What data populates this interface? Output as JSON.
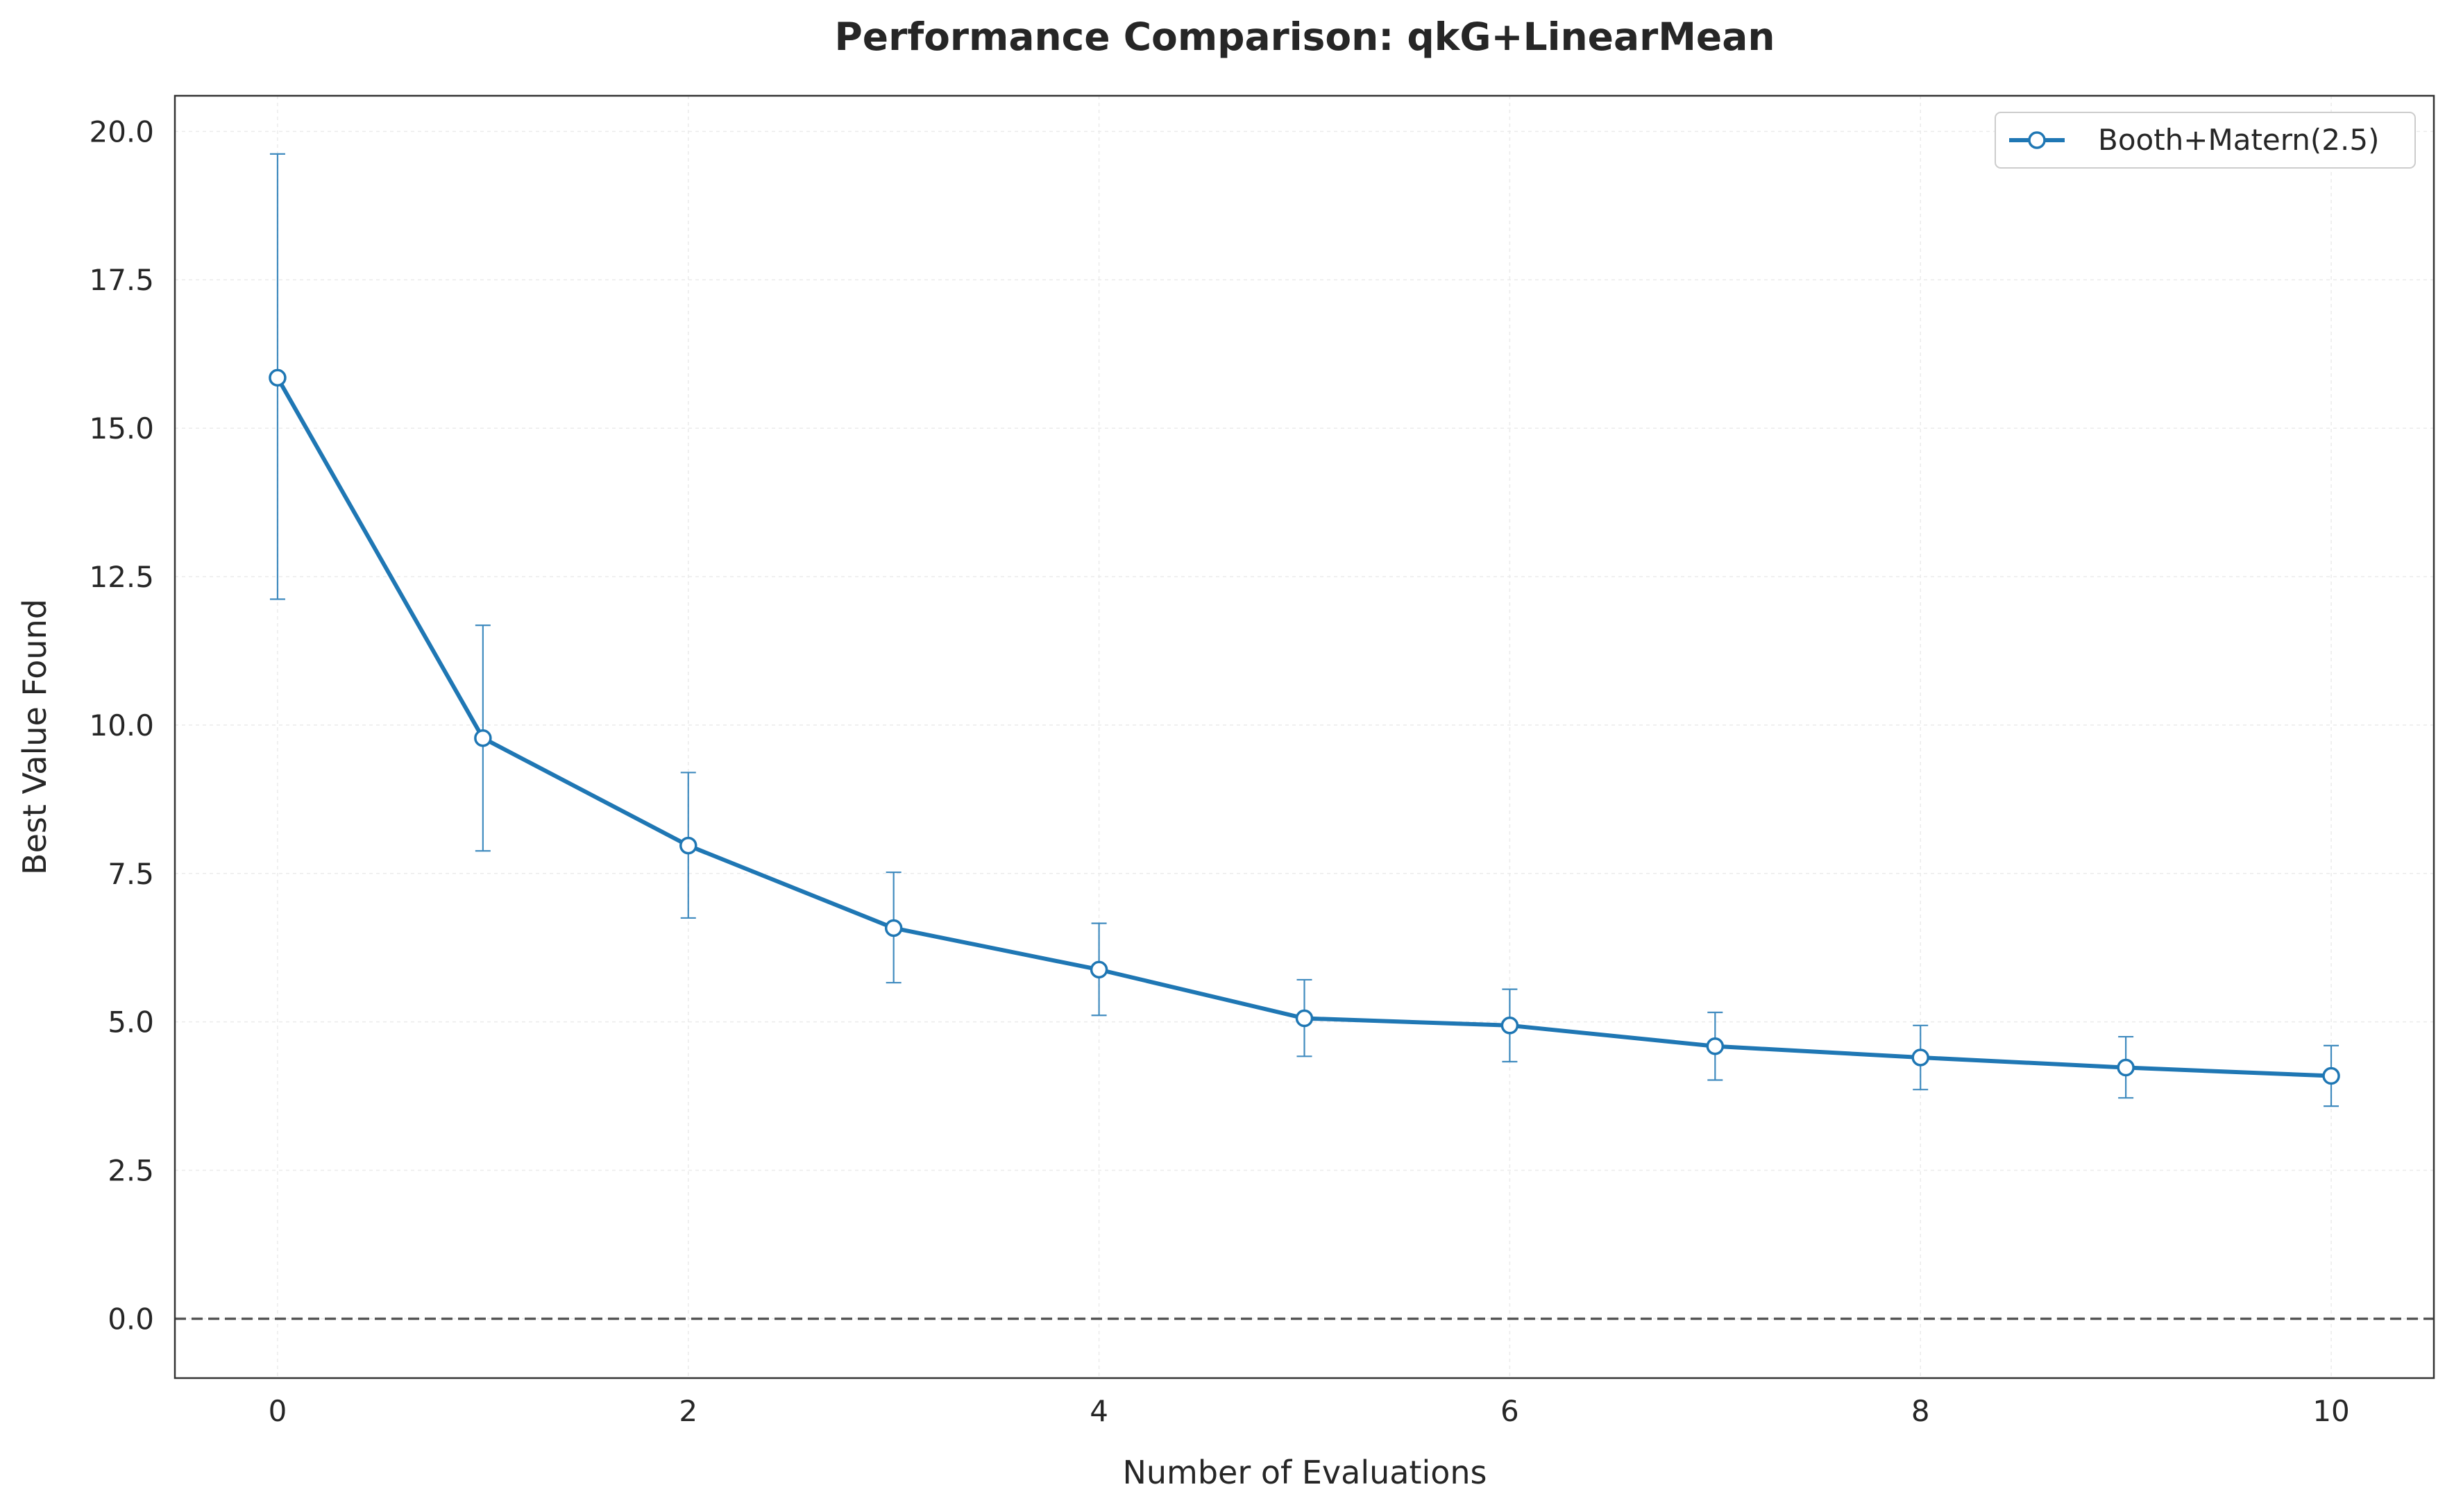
{
  "chart_data": {
    "type": "line",
    "title": "Performance Comparison: qkG+LinearMean",
    "xlabel": "Number of Evaluations",
    "ylabel": "Best Value Found",
    "xlim": [
      -0.5,
      10.5
    ],
    "ylim": [
      -1.0,
      20.6
    ],
    "xticks": [
      0,
      2,
      4,
      6,
      8,
      10
    ],
    "xtick_labels": [
      "0",
      "2",
      "4",
      "6",
      "8",
      "10"
    ],
    "yticks": [
      0.0,
      2.5,
      5.0,
      7.5,
      10.0,
      12.5,
      15.0,
      17.5,
      20.0
    ],
    "ytick_labels": [
      "0.0",
      "2.5",
      "5.0",
      "7.5",
      "10.0",
      "12.5",
      "15.0",
      "17.5",
      "20.0"
    ],
    "grid": true,
    "legend_position": "top-right",
    "reference_line": {
      "y": 0.0,
      "style": "dashed",
      "color": "#555555"
    },
    "series": [
      {
        "name": "Booth+Matern(2.5)",
        "color": "#1f77b4",
        "marker": "circle-open",
        "x": [
          0,
          1,
          2,
          3,
          4,
          5,
          6,
          7,
          8,
          9,
          10
        ],
        "y": [
          15.85,
          9.78,
          7.97,
          6.58,
          5.88,
          5.06,
          4.94,
          4.59,
          4.4,
          4.23,
          4.09
        ],
        "err_low": [
          12.12,
          7.88,
          6.75,
          5.66,
          5.11,
          4.42,
          4.33,
          4.02,
          3.86,
          3.72,
          3.58
        ],
        "err_high": [
          19.62,
          11.68,
          9.2,
          7.52,
          6.66,
          5.71,
          5.55,
          5.16,
          4.94,
          4.75,
          4.6
        ]
      }
    ]
  }
}
